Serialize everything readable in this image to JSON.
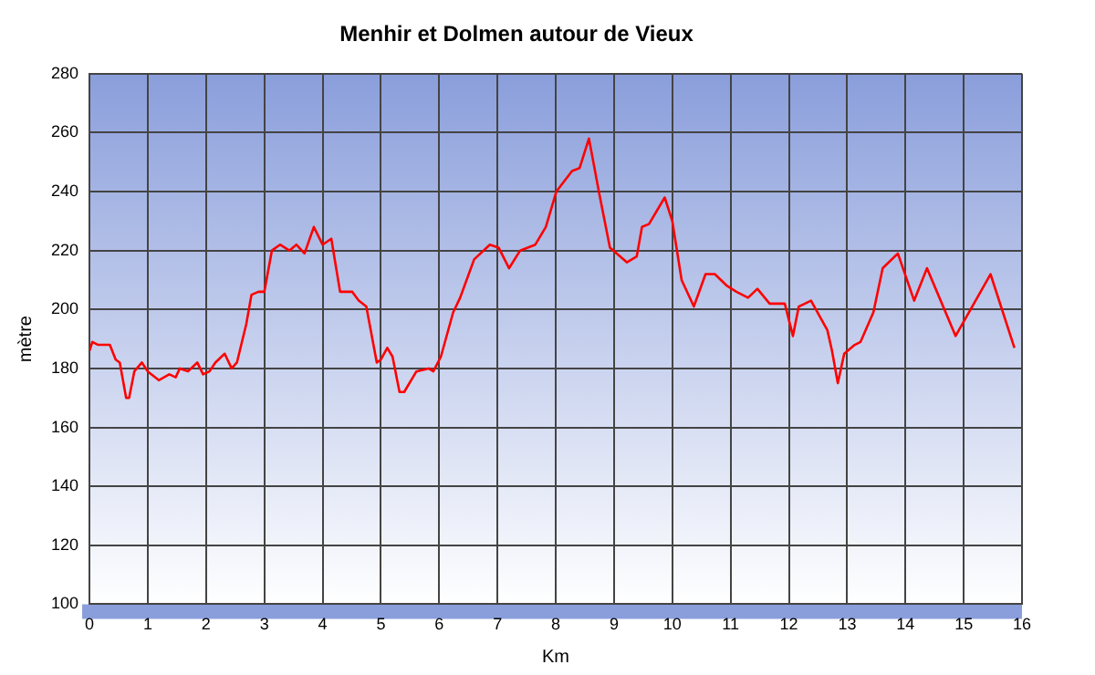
{
  "chart_data": {
    "type": "line",
    "title": "Menhir et Dolmen autour de Vieux",
    "xlabel": "Km",
    "ylabel": "mètre",
    "x": [
      0,
      0.05,
      0.15,
      0.27,
      0.35,
      0.45,
      0.52,
      0.63,
      0.68,
      0.77,
      0.9,
      1.0,
      1.19,
      1.37,
      1.48,
      1.55,
      1.69,
      1.85,
      1.95,
      2.06,
      2.16,
      2.32,
      2.44,
      2.53,
      2.69,
      2.78,
      2.9,
      3.0,
      3.13,
      3.27,
      3.43,
      3.55,
      3.69,
      3.85,
      4.0,
      4.15,
      4.3,
      4.51,
      4.62,
      4.75,
      4.93,
      5.0,
      5.11,
      5.2,
      5.32,
      5.4,
      5.61,
      5.82,
      5.9,
      6.03,
      6.24,
      6.36,
      6.6,
      6.87,
      7.02,
      7.2,
      7.39,
      7.65,
      7.83,
      8.01,
      8.28,
      8.41,
      8.57,
      8.75,
      8.93,
      9.22,
      9.39,
      9.48,
      9.6,
      9.87,
      10.0,
      10.16,
      10.37,
      10.57,
      10.73,
      10.94,
      11.1,
      11.3,
      11.46,
      11.67,
      11.93,
      12.07,
      12.17,
      12.38,
      12.66,
      12.74,
      12.84,
      12.95,
      13.13,
      13.23,
      13.45,
      13.61,
      13.87,
      14.15,
      14.37,
      14.86,
      15.46,
      15.87
    ],
    "values": [
      186,
      189,
      188,
      188,
      188,
      183,
      182,
      170,
      170,
      179,
      182,
      179,
      176,
      178,
      177,
      180,
      179,
      182,
      178,
      179,
      182,
      185,
      180,
      182,
      195,
      205,
      206,
      206,
      220,
      222,
      220,
      222,
      219,
      228,
      222,
      224,
      206,
      206,
      203,
      201,
      182,
      183,
      187,
      184,
      172,
      172,
      179,
      180,
      179,
      184,
      199,
      204,
      217,
      222,
      221,
      214,
      220,
      222,
      228,
      240,
      247,
      248,
      258,
      239,
      221,
      216,
      218,
      228,
      229,
      238,
      230,
      210,
      201,
      212,
      212,
      208,
      206,
      204,
      207,
      202,
      202,
      191,
      201,
      203,
      193,
      186,
      175,
      185,
      188,
      189,
      199,
      214,
      219,
      203,
      214,
      191,
      212,
      187
    ],
    "color": "#ff0000",
    "marker": "none",
    "xlim": [
      0,
      16
    ],
    "ylim": [
      100,
      280
    ],
    "xticks": [
      0,
      1,
      2,
      3,
      4,
      5,
      6,
      7,
      8,
      9,
      10,
      11,
      12,
      13,
      14,
      15,
      16
    ],
    "yticks": [
      100,
      120,
      140,
      160,
      180,
      200,
      220,
      240,
      260,
      280
    ],
    "grid": true
  }
}
